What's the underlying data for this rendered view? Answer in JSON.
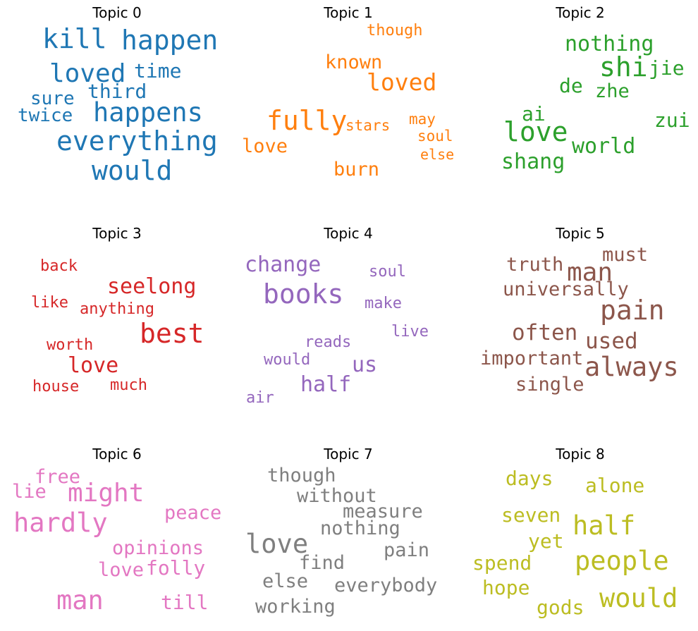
{
  "chart_data": [
    {
      "type": "wordcloud",
      "title": "Topic 0",
      "color": "#1f77b4",
      "words": [
        {
          "text": "kill",
          "weight": 0.95
        },
        {
          "text": "happen",
          "weight": 0.95
        },
        {
          "text": "loved",
          "weight": 0.9
        },
        {
          "text": "time",
          "weight": 0.6
        },
        {
          "text": "third",
          "weight": 0.6
        },
        {
          "text": "sure",
          "weight": 0.58
        },
        {
          "text": "happens",
          "weight": 0.9
        },
        {
          "text": "twice",
          "weight": 0.58
        },
        {
          "text": "everything",
          "weight": 0.9
        },
        {
          "text": "would",
          "weight": 0.9
        }
      ]
    },
    {
      "type": "wordcloud",
      "title": "Topic 1",
      "color": "#ff7f0e",
      "words": [
        {
          "text": "though",
          "weight": 0.45
        },
        {
          "text": "known",
          "weight": 0.6
        },
        {
          "text": "loved",
          "weight": 0.8
        },
        {
          "text": "fully",
          "weight": 0.95
        },
        {
          "text": "stars",
          "weight": 0.45
        },
        {
          "text": "may",
          "weight": 0.45
        },
        {
          "text": "soul",
          "weight": 0.45
        },
        {
          "text": "love",
          "weight": 0.6
        },
        {
          "text": "else",
          "weight": 0.42
        },
        {
          "text": "burn",
          "weight": 0.6
        }
      ]
    },
    {
      "type": "wordcloud",
      "title": "Topic 2",
      "color": "#2ca02c",
      "words": [
        {
          "text": "nothing",
          "weight": 0.65
        },
        {
          "text": "shi",
          "weight": 0.95
        },
        {
          "text": "jie",
          "weight": 0.65
        },
        {
          "text": "de",
          "weight": 0.65
        },
        {
          "text": "zhe",
          "weight": 0.65
        },
        {
          "text": "ai",
          "weight": 0.65
        },
        {
          "text": "love",
          "weight": 0.9
        },
        {
          "text": "zui",
          "weight": 0.65
        },
        {
          "text": "world",
          "weight": 0.65
        },
        {
          "text": "shang",
          "weight": 0.65
        }
      ]
    },
    {
      "type": "wordcloud",
      "title": "Topic 3",
      "color": "#d62728",
      "words": [
        {
          "text": "back",
          "weight": 0.55
        },
        {
          "text": "seelong",
          "weight": 0.75
        },
        {
          "text": "like",
          "weight": 0.55
        },
        {
          "text": "anything",
          "weight": 0.55
        },
        {
          "text": "best",
          "weight": 0.95
        },
        {
          "text": "worth",
          "weight": 0.55
        },
        {
          "text": "love",
          "weight": 0.75
        },
        {
          "text": "house",
          "weight": 0.55
        },
        {
          "text": "much",
          "weight": 0.55
        }
      ]
    },
    {
      "type": "wordcloud",
      "title": "Topic 4",
      "color": "#9467bd",
      "words": [
        {
          "text": "change",
          "weight": 0.8
        },
        {
          "text": "soul",
          "weight": 0.55
        },
        {
          "text": "books",
          "weight": 0.95
        },
        {
          "text": "make",
          "weight": 0.55
        },
        {
          "text": "live",
          "weight": 0.55
        },
        {
          "text": "reads",
          "weight": 0.55
        },
        {
          "text": "would",
          "weight": 0.55
        },
        {
          "text": "us",
          "weight": 0.75
        },
        {
          "text": "half",
          "weight": 0.8
        },
        {
          "text": "air",
          "weight": 0.55
        }
      ]
    },
    {
      "type": "wordcloud",
      "title": "Topic 5",
      "color": "#8c564b",
      "words": [
        {
          "text": "must",
          "weight": 0.65
        },
        {
          "text": "truth",
          "weight": 0.65
        },
        {
          "text": "man",
          "weight": 0.9
        },
        {
          "text": "universally",
          "weight": 0.65
        },
        {
          "text": "pain",
          "weight": 0.9
        },
        {
          "text": "often",
          "weight": 0.8
        },
        {
          "text": "used",
          "weight": 0.8
        },
        {
          "text": "important",
          "weight": 0.65
        },
        {
          "text": "always",
          "weight": 0.9
        },
        {
          "text": "single",
          "weight": 0.65
        }
      ]
    },
    {
      "type": "wordcloud",
      "title": "Topic 6",
      "color": "#e377c2",
      "words": [
        {
          "text": "free",
          "weight": 0.65
        },
        {
          "text": "lie",
          "weight": 0.65
        },
        {
          "text": "might",
          "weight": 0.9
        },
        {
          "text": "peace",
          "weight": 0.65
        },
        {
          "text": "hardly",
          "weight": 0.9
        },
        {
          "text": "opinions",
          "weight": 0.65
        },
        {
          "text": "love",
          "weight": 0.65
        },
        {
          "text": "folly",
          "weight": 0.65
        },
        {
          "text": "man",
          "weight": 0.9
        },
        {
          "text": "till",
          "weight": 0.65
        }
      ]
    },
    {
      "type": "wordcloud",
      "title": "Topic 7",
      "color": "#7f7f7f",
      "words": [
        {
          "text": "though",
          "weight": 0.65
        },
        {
          "text": "without",
          "weight": 0.65
        },
        {
          "text": "measure",
          "weight": 0.65
        },
        {
          "text": "nothing",
          "weight": 0.65
        },
        {
          "text": "love",
          "weight": 0.9
        },
        {
          "text": "pain",
          "weight": 0.65
        },
        {
          "text": "find",
          "weight": 0.65
        },
        {
          "text": "else",
          "weight": 0.65
        },
        {
          "text": "everybody",
          "weight": 0.65
        },
        {
          "text": "working",
          "weight": 0.65
        }
      ]
    },
    {
      "type": "wordcloud",
      "title": "Topic 8",
      "color": "#bcbd22",
      "words": [
        {
          "text": "days",
          "weight": 0.65
        },
        {
          "text": "alone",
          "weight": 0.65
        },
        {
          "text": "seven",
          "weight": 0.65
        },
        {
          "text": "half",
          "weight": 0.9
        },
        {
          "text": "yet",
          "weight": 0.65
        },
        {
          "text": "people",
          "weight": 0.9
        },
        {
          "text": "spend",
          "weight": 0.65
        },
        {
          "text": "hope",
          "weight": 0.65
        },
        {
          "text": "would",
          "weight": 0.9
        },
        {
          "text": "gods",
          "weight": 0.65
        }
      ]
    }
  ]
}
